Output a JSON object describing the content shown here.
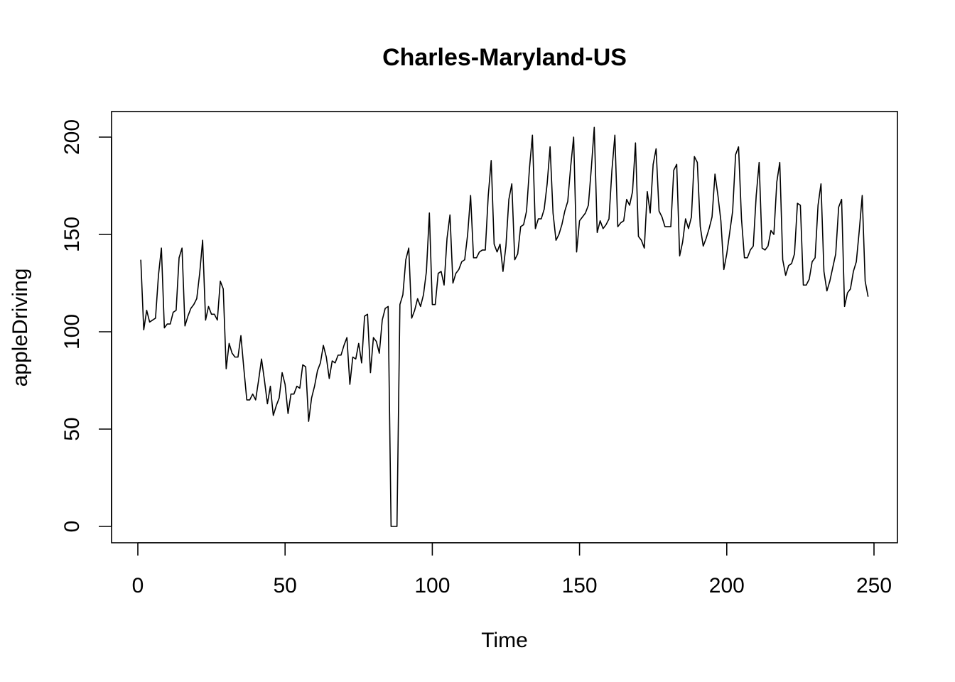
{
  "chart_data": {
    "type": "line",
    "title": "Charles-Maryland-US",
    "xlabel": "Time",
    "ylabel": "appleDriving",
    "xlim": [
      1,
      248
    ],
    "ylim": [
      0,
      205
    ],
    "xticks": [
      0,
      50,
      100,
      150,
      200,
      250
    ],
    "yticks": [
      0,
      50,
      100,
      150,
      200
    ],
    "grid": false,
    "series": [
      {
        "color": "#000000",
        "x": [
          1,
          2,
          3,
          4,
          5,
          6,
          7,
          8,
          9,
          10,
          11,
          12,
          13,
          14,
          15,
          16,
          17,
          18,
          19,
          20,
          21,
          22,
          23,
          24,
          25,
          26,
          27,
          28,
          29,
          30,
          31,
          32,
          33,
          34,
          35,
          36,
          37,
          38,
          39,
          40,
          41,
          42,
          43,
          44,
          45,
          46,
          47,
          48,
          49,
          50,
          51,
          52,
          53,
          54,
          55,
          56,
          57,
          58,
          59,
          60,
          61,
          62,
          63,
          64,
          65,
          66,
          67,
          68,
          69,
          70,
          71,
          72,
          73,
          74,
          75,
          76,
          77,
          78,
          79,
          80,
          81,
          82,
          83,
          84,
          85,
          86,
          87,
          88,
          89,
          90,
          91,
          92,
          93,
          94,
          95,
          96,
          97,
          98,
          99,
          100,
          101,
          102,
          103,
          104,
          105,
          106,
          107,
          108,
          109,
          110,
          111,
          112,
          113,
          114,
          115,
          116,
          117,
          118,
          119,
          120,
          121,
          122,
          123,
          124,
          125,
          126,
          127,
          128,
          129,
          130,
          131,
          132,
          133,
          134,
          135,
          136,
          137,
          138,
          139,
          140,
          141,
          142,
          143,
          144,
          145,
          146,
          147,
          148,
          149,
          150,
          151,
          152,
          153,
          154,
          155,
          156,
          157,
          158,
          159,
          160,
          161,
          162,
          163,
          164,
          165,
          166,
          167,
          168,
          169,
          170,
          171,
          172,
          173,
          174,
          175,
          176,
          177,
          178,
          179,
          180,
          181,
          182,
          183,
          184,
          185,
          186,
          187,
          188,
          189,
          190,
          191,
          192,
          193,
          194,
          195,
          196,
          197,
          198,
          199,
          200,
          201,
          202,
          203,
          204,
          205,
          206,
          207,
          208,
          209,
          210,
          211,
          212,
          213,
          214,
          215,
          216,
          217,
          218,
          219,
          220,
          221,
          222,
          223,
          224,
          225,
          226,
          227,
          228,
          229,
          230,
          231,
          232,
          233,
          234,
          235,
          236,
          237,
          238,
          239,
          240,
          241,
          242,
          243,
          244,
          245,
          246,
          247,
          248
        ],
        "values": [
          137,
          101,
          111,
          105,
          106,
          107,
          129,
          143,
          102,
          104,
          104,
          110,
          111,
          138,
          143,
          103,
          108,
          112,
          114,
          117,
          130,
          147,
          106,
          113,
          109,
          109,
          106,
          126,
          122,
          81,
          94,
          89,
          87,
          87,
          98,
          81,
          65,
          65,
          68,
          65,
          75,
          86,
          75,
          63,
          72,
          57,
          62,
          66,
          79,
          73,
          58,
          68,
          68,
          72,
          71,
          83,
          82,
          54,
          66,
          72,
          80,
          84,
          93,
          87,
          76,
          85,
          84,
          88,
          88,
          93,
          97,
          73,
          87,
          86,
          94,
          84,
          108,
          109,
          79,
          97,
          95,
          89,
          106,
          112,
          113,
          0,
          0,
          0,
          114,
          119,
          137,
          143,
          107,
          111,
          117,
          113,
          119,
          131,
          161,
          114,
          114,
          130,
          131,
          124,
          148,
          160,
          125,
          130,
          132,
          136,
          137,
          150,
          170,
          138,
          138,
          141,
          142,
          142,
          170,
          188,
          145,
          141,
          145,
          131,
          144,
          168,
          176,
          137,
          140,
          154,
          155,
          162,
          184,
          201,
          153,
          158,
          158,
          163,
          176,
          195,
          161,
          147,
          150,
          155,
          162,
          167,
          185,
          200,
          141,
          157,
          159,
          161,
          165,
          184,
          205,
          151,
          157,
          153,
          155,
          158,
          183,
          201,
          154,
          156,
          157,
          168,
          165,
          172,
          197,
          149,
          147,
          143,
          172,
          161,
          186,
          194,
          162,
          159,
          154,
          154,
          154,
          183,
          186,
          139,
          146,
          158,
          153,
          159,
          190,
          187,
          154,
          144,
          148,
          153,
          159,
          181,
          170,
          157,
          132,
          140,
          151,
          162,
          191,
          195,
          158,
          138,
          138,
          142,
          144,
          170,
          187,
          143,
          142,
          144,
          152,
          150,
          177,
          187,
          137,
          129,
          134,
          135,
          140,
          166,
          165,
          124,
          124,
          127,
          136,
          138,
          165,
          176,
          131,
          121,
          126,
          133,
          140,
          164,
          168,
          113,
          120,
          122,
          131,
          136,
          152,
          170,
          126,
          118
        ]
      }
    ]
  }
}
